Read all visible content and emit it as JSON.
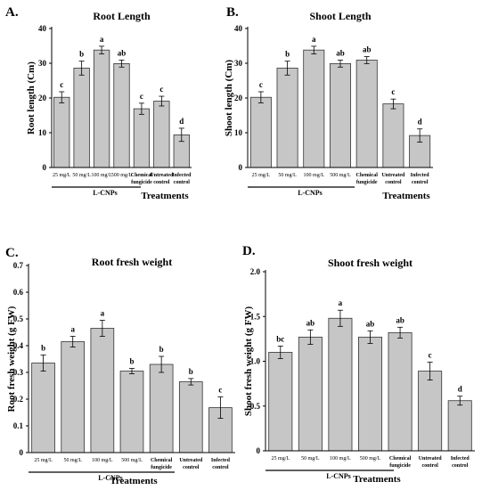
{
  "chart_data": [
    {
      "id": "A",
      "type": "bar",
      "panel_letter": "A.",
      "title": "Root Length",
      "ylabel": "Root length (Cm)",
      "xlabel": "Treatments",
      "group_label": "L-CNPs",
      "categories": [
        "25 mg/L",
        "50 mg/L",
        "100 mg/L",
        "500 mg/L",
        "Chemical fungicide",
        "Untreated control",
        "Infected control"
      ],
      "values": [
        20.2,
        28.6,
        33.8,
        29.9,
        16.9,
        19.1,
        9.4
      ],
      "errors": [
        1.6,
        2.0,
        1.1,
        1.0,
        1.6,
        1.4,
        1.9
      ],
      "significance": [
        "c",
        "b",
        "a",
        "ab",
        "c",
        "c",
        "d"
      ],
      "ylim": [
        0,
        40
      ],
      "yticks": [
        0,
        10,
        20,
        30,
        40
      ],
      "legend": "none",
      "grid": false
    },
    {
      "id": "B",
      "type": "bar",
      "panel_letter": "B.",
      "title": "Shoot Length",
      "ylabel": "Shoot length (Cm)",
      "xlabel": "Treatments",
      "group_label": "L-CNPs",
      "categories": [
        "25 mg/L",
        "50 mg/L",
        "100 mg/L",
        "500 mg/L",
        "Chemical fungicide",
        "Untreated control",
        "Infected control"
      ],
      "values": [
        20.2,
        28.6,
        33.8,
        29.9,
        30.9,
        18.3,
        9.2
      ],
      "errors": [
        1.6,
        2.0,
        1.1,
        1.0,
        1.0,
        1.4,
        1.9
      ],
      "significance": [
        "c",
        "b",
        "a",
        "ab",
        "ab",
        "c",
        "d"
      ],
      "ylim": [
        0,
        40
      ],
      "yticks": [
        0,
        10,
        20,
        30,
        40
      ],
      "legend": "none",
      "grid": false
    },
    {
      "id": "C",
      "type": "bar",
      "panel_letter": "C.",
      "title": "Root fresh weight",
      "ylabel": "Root fresh weight (g FW)",
      "xlabel": "Treatments",
      "group_label": "L-CNPs",
      "categories": [
        "25 mg/L",
        "50 mg/L",
        "100 mg/L",
        "500 mg/L",
        "Chemical fungicide",
        "Untreated control",
        "Infected control"
      ],
      "values": [
        0.335,
        0.415,
        0.465,
        0.305,
        0.33,
        0.265,
        0.168
      ],
      "errors": [
        0.03,
        0.02,
        0.03,
        0.01,
        0.03,
        0.012,
        0.04
      ],
      "significance": [
        "b",
        "a",
        "a",
        "b",
        "b",
        "b",
        "c"
      ],
      "ylim": [
        0,
        0.7
      ],
      "yticks": [
        0,
        0.1,
        0.2,
        0.3,
        0.4,
        0.5,
        0.6,
        0.7
      ],
      "legend": "none",
      "grid": false
    },
    {
      "id": "D",
      "type": "bar",
      "panel_letter": "D.",
      "title": "Shoot fresh weight",
      "ylabel": "Shoot fresh weight (g FW)",
      "xlabel": "Treatments",
      "group_label": "L-CNPs",
      "categories": [
        "25 mg/L",
        "50 mg/L",
        "100 mg/L",
        "500 mg/L",
        "Chemical fungicide",
        "Untreated control",
        "Infected control"
      ],
      "values": [
        1.1,
        1.27,
        1.48,
        1.27,
        1.32,
        0.89,
        0.56
      ],
      "errors": [
        0.07,
        0.08,
        0.09,
        0.07,
        0.06,
        0.1,
        0.05
      ],
      "significance": [
        "bc",
        "ab",
        "a",
        "ab",
        "ab",
        "c",
        "d"
      ],
      "ylim": [
        0,
        2.0
      ],
      "yticks": [
        0,
        0.5,
        1.0,
        1.5,
        2.0
      ],
      "ytick_labels": [
        "0",
        "0.5",
        "1.0",
        "1.5",
        "2.0"
      ],
      "legend": "none",
      "grid": false
    }
  ]
}
